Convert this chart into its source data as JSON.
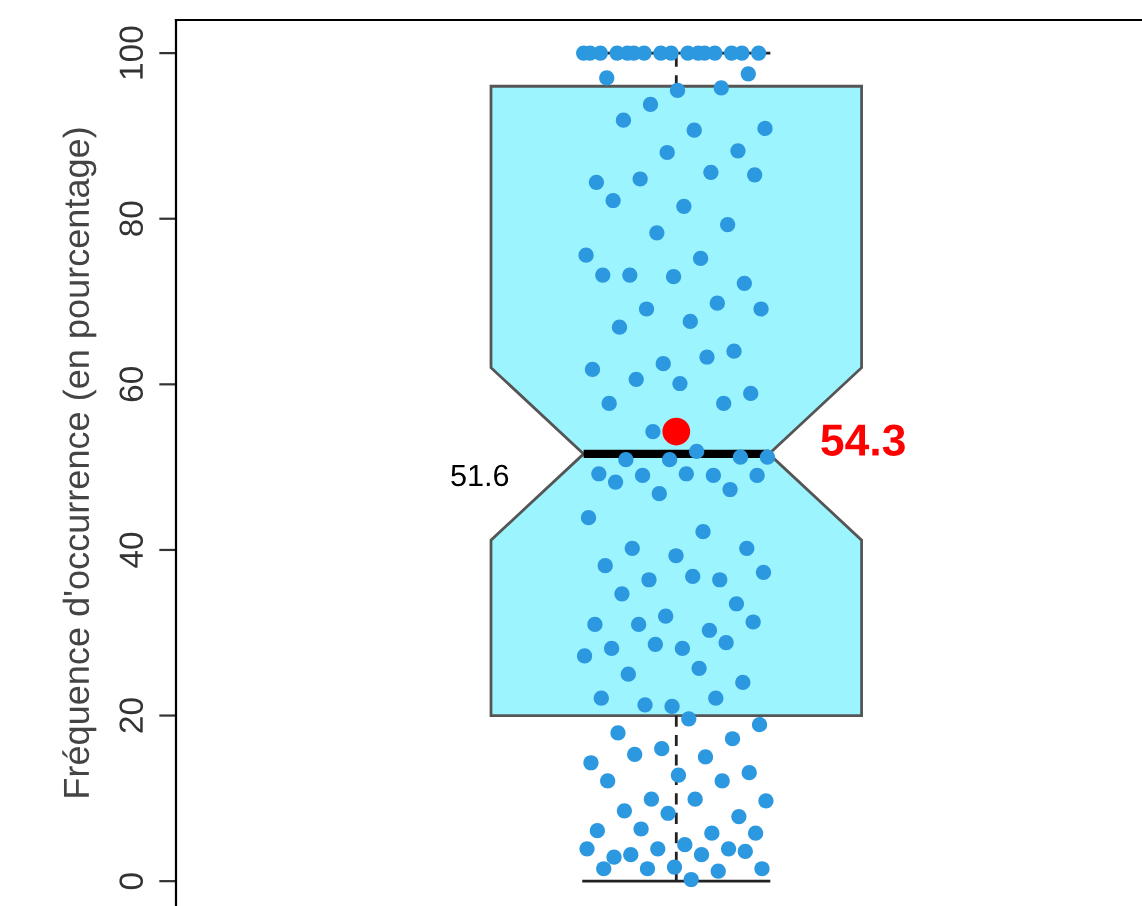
{
  "chart_data": {
    "type": "box",
    "ylabel": "Fréquence d'occurrence (en pourcentage)",
    "categories": [
      null
    ],
    "colors": [
      "#9cf4ff"
    ],
    "boxes": [
      {
        "low": 0,
        "q1": 20,
        "median": 51.6,
        "q3": 96,
        "high": 100,
        "mean": 54.3
      }
    ],
    "ylim": [
      -3,
      104
    ],
    "yticks": [
      0,
      20,
      40,
      60,
      80,
      100
    ],
    "marker": "circle",
    "annotations": [
      "51.6",
      "54.3"
    ],
    "series": [
      {
        "type": "scatter",
        "color": "#2b98e0",
        "x": [
          null,
          null,
          null,
          null,
          null,
          null,
          null,
          null,
          null,
          null,
          null,
          null,
          null,
          null,
          null,
          null,
          null,
          null,
          null,
          null,
          null,
          null,
          null,
          null,
          null,
          null,
          null,
          null,
          null,
          null,
          null,
          null,
          null,
          null,
          null,
          null,
          null,
          null,
          null,
          null,
          null,
          null,
          null,
          null,
          null,
          null,
          null,
          null,
          null,
          null,
          null,
          null,
          null,
          null,
          null,
          null,
          null,
          null,
          null,
          null,
          null,
          null,
          null,
          null,
          null,
          null,
          null,
          null,
          null,
          null,
          null,
          null,
          null,
          null,
          null,
          null,
          null,
          null,
          null,
          null,
          null,
          null,
          null,
          null,
          null,
          null,
          null,
          null,
          null,
          null,
          null,
          null,
          null,
          null,
          null,
          null,
          null,
          null,
          null,
          null,
          null,
          null,
          null,
          null,
          null,
          null,
          null,
          null,
          null,
          null,
          null,
          null,
          null,
          null,
          null,
          null,
          null,
          null,
          null,
          null,
          null,
          null,
          null,
          null,
          null,
          null,
          null,
          null,
          null,
          null,
          null,
          null,
          null
        ],
        "values": [
          100,
          100,
          100,
          100,
          100,
          100,
          100,
          100,
          100,
          100,
          100,
          100,
          100,
          100,
          100,
          100,
          97.5,
          95.5,
          97,
          95.8,
          93.8,
          90.9,
          90.7,
          91.9,
          88.2,
          88,
          84.4,
          85.6,
          84.8,
          85.3,
          81.5,
          82.2,
          79.3,
          78.3,
          75.6,
          75.2,
          73.2,
          72.2,
          73,
          73.2,
          69.8,
          69.1,
          69.1,
          67.6,
          66.9,
          64,
          62.5,
          61.8,
          63.3,
          60.6,
          58.9,
          60.1,
          57.7,
          57.7,
          54.3,
          51.2,
          51.9,
          50.9,
          51.2,
          50.9,
          49.2,
          49,
          49,
          49,
          49.2,
          48.2,
          47.3,
          46.8,
          43.9,
          42.2,
          40.2,
          40.2,
          39.3,
          38.1,
          36.4,
          36.4,
          37.3,
          36.8,
          34.7,
          33.5,
          32,
          31,
          30.3,
          31,
          31.3,
          28.1,
          28.1,
          28.8,
          28.6,
          27.2,
          25.7,
          25,
          24,
          21.1,
          22.1,
          22.1,
          21.3,
          18.9,
          19.6,
          17.9,
          17.2,
          16,
          14.3,
          15,
          15.3,
          13.1,
          12.8,
          12.1,
          12.1,
          9.9,
          9.7,
          9.9,
          8.5,
          7.8,
          8.2,
          6.1,
          5.8,
          6.3,
          5.8,
          4.4,
          2.9,
          3.9,
          3.9,
          3.9,
          3.2,
          3.2,
          3.6,
          1.7,
          1.5,
          1.2,
          1.5,
          1.5,
          0.2
        ]
      }
    ]
  }
}
